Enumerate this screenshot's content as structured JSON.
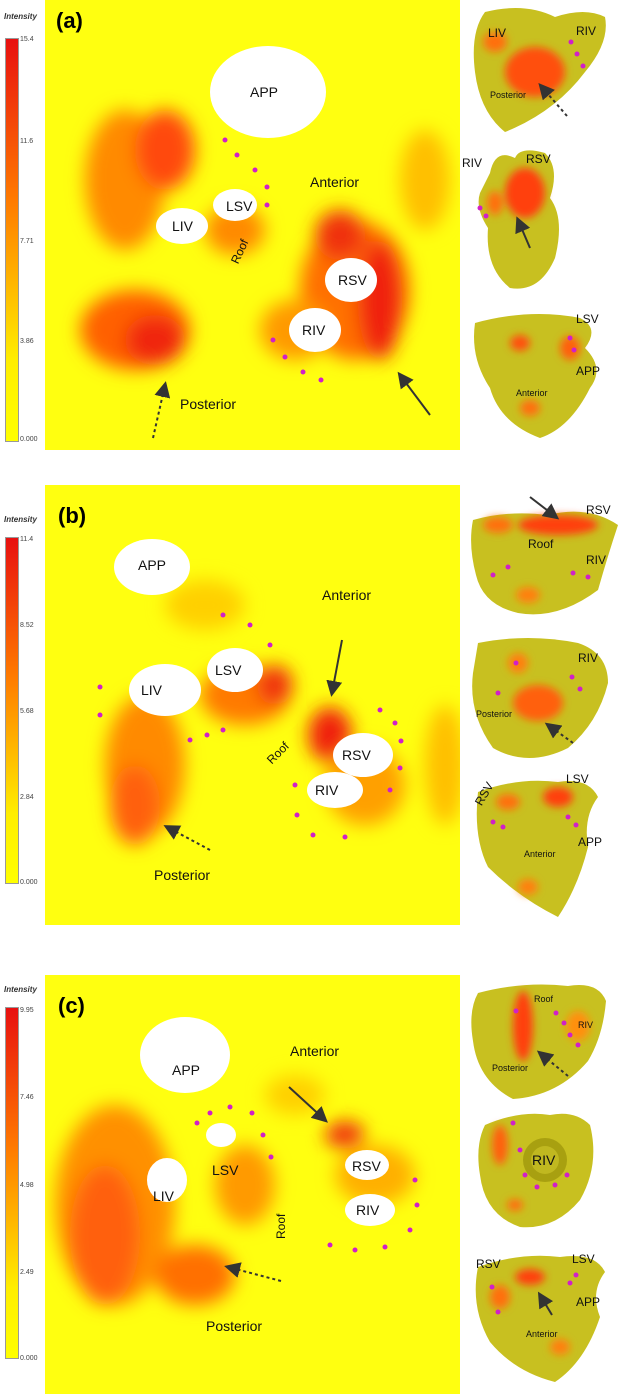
{
  "colors": {
    "high": "#e81010",
    "mid": "#ff8a00",
    "low": "#ffff00",
    "dot": "#d020c8",
    "hole": "#ffffff",
    "model": "#c8c020"
  },
  "colorbar_title": "Intensity",
  "panels": [
    {
      "id": "a",
      "label": "(a)",
      "ticks": [
        "15.4",
        "11.6",
        "7.71",
        "3.86",
        "0.000"
      ],
      "map_labels": {
        "app": "APP",
        "liv": "LIV",
        "lsv": "LSV",
        "rsv": "RSV",
        "riv": "RIV",
        "roof": "Roof",
        "anterior": "Anterior",
        "posterior": "Posterior"
      },
      "models": [
        {
          "labels": [
            "LIV",
            "RIV",
            "Posterior"
          ]
        },
        {
          "labels": [
            "RIV",
            "RSV"
          ]
        },
        {
          "labels": [
            "LSV",
            "APP",
            "Anterior"
          ]
        }
      ]
    },
    {
      "id": "b",
      "label": "(b)",
      "ticks": [
        "11.4",
        "8.52",
        "5.68",
        "2.84",
        "0.000"
      ],
      "map_labels": {
        "app": "APP",
        "liv": "LIV",
        "lsv": "LSV",
        "rsv": "RSV",
        "riv": "RIV",
        "roof": "Roof",
        "anterior": "Anterior",
        "posterior": "Posterior"
      },
      "models": [
        {
          "labels": [
            "RSV",
            "Roof",
            "RIV"
          ]
        },
        {
          "labels": [
            "RIV",
            "Posterior"
          ]
        },
        {
          "labels": [
            "RSV",
            "LSV",
            "APP",
            "Anterior"
          ]
        }
      ]
    },
    {
      "id": "c",
      "label": "(c)",
      "ticks": [
        "9.95",
        "7.46",
        "4.98",
        "2.49",
        "0.000"
      ],
      "map_labels": {
        "app": "APP",
        "liv": "LIV",
        "lsv": "LSV",
        "rsv": "RSV",
        "riv": "RIV",
        "roof": "Roof",
        "anterior": "Anterior",
        "posterior": "Posterior"
      },
      "models": [
        {
          "labels": [
            "Roof",
            "RIV",
            "Posterior"
          ]
        },
        {
          "labels": [
            "RIV"
          ]
        },
        {
          "labels": [
            "RSV",
            "LSV",
            "APP",
            "Anterior"
          ]
        }
      ]
    }
  ]
}
